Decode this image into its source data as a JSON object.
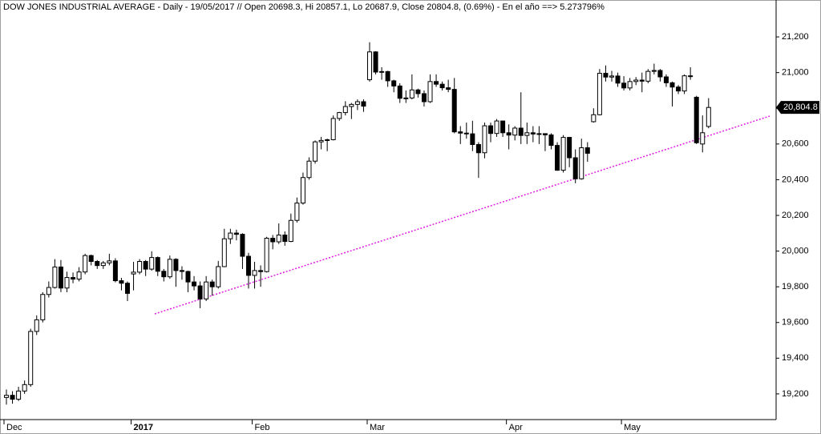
{
  "chart_data": {
    "type": "candlestick",
    "title": "DOW JONES INDUSTRIAL AVERAGE - Daily - 19/05/2017 // Open 20698.3, Hi 20857.1, Lo 20687.9, Close 20804.8, (0.69%) - En el año ==> 5.273796%",
    "categories": [
      "Dec",
      null,
      null,
      null,
      null,
      null,
      null,
      null,
      null,
      null,
      null,
      null,
      null,
      null,
      null,
      null,
      null,
      null,
      null,
      null,
      null,
      "2017",
      null,
      null,
      null,
      null,
      null,
      null,
      null,
      null,
      null,
      null,
      null,
      null,
      null,
      null,
      null,
      null,
      null,
      null,
      null,
      "Feb",
      null,
      null,
      null,
      null,
      null,
      null,
      null,
      null,
      null,
      null,
      null,
      null,
      null,
      null,
      null,
      null,
      null,
      null,
      "Mar",
      null,
      null,
      null,
      null,
      null,
      null,
      null,
      null,
      null,
      null,
      null,
      null,
      null,
      null,
      null,
      null,
      null,
      null,
      null,
      null,
      null,
      null,
      "Apr",
      null,
      null,
      null,
      null,
      null,
      null,
      null,
      null,
      null,
      null,
      null,
      null,
      null,
      null,
      null,
      null,
      null,
      null,
      "May",
      null,
      null,
      null,
      null,
      null,
      null,
      null,
      null,
      null,
      null,
      null,
      null,
      null,
      null
    ],
    "open": [
      19180,
      19192,
      19170,
      19216,
      19252,
      19550,
      19615,
      19757,
      19796,
      19911,
      19793,
      19852,
      19843,
      19883,
      19975,
      19942,
      19919,
      19934,
      19945,
      19834,
      19820,
      19872,
      19882,
      19942,
      19899,
      19964,
      19887,
      19856,
      19954,
      19891,
      19886,
      19827,
      19805,
      19732,
      19827,
      19800,
      19913,
      20069,
      20101,
      20094,
      19971,
      19864,
      19891,
      19885,
      20072,
      20052,
      20090,
      20054,
      20172,
      20269,
      20412,
      20504,
      20612,
      20620,
      20624,
      20743,
      20776,
      20810,
      20822,
      20837,
      20960,
      21116,
      21003,
      21006,
      20954,
      20925,
      20856,
      20858,
      20903,
      20882,
      20837,
      20950,
      20935,
      20915,
      20906,
      20668,
      20661,
      20657,
      20597,
      20551,
      20702,
      20659,
      20729,
      20663,
      20650,
      20689,
      20648,
      20663,
      20656,
      20658,
      20651,
      20592,
      20453,
      20637,
      20523,
      20405,
      20579,
      20725,
      20764,
      20996,
      20975,
      20981,
      20941,
      20914,
      20950,
      20958,
      20952,
      21007,
      21012,
      20976,
      20943,
      20919,
      20897,
      20982,
      20862,
      20600,
      20698.3
    ],
    "high": [
      19225,
      19215,
      19240,
      19275,
      19565,
      19640,
      19770,
      19830,
      19955,
      19950,
      19885,
      19880,
      19910,
      19985,
      19980,
      19950,
      19945,
      19985,
      19960,
      19850,
      19830,
      19940,
      19955,
      19950,
      19999,
      19970,
      19900,
      19975,
      19960,
      19915,
      19890,
      19860,
      19830,
      19860,
      19840,
      19945,
      20125,
      20125,
      20120,
      20100,
      19990,
      19940,
      19920,
      20080,
      20090,
      20155,
      20110,
      20210,
      20300,
      20440,
      20525,
      20620,
      20640,
      20630,
      20760,
      20780,
      20840,
      20830,
      20850,
      20850,
      21170,
      21120,
      21030,
      21010,
      20960,
      20940,
      20900,
      20990,
      20910,
      20900,
      20990,
      20990,
      20950,
      20960,
      20970,
      20700,
      20720,
      20730,
      20610,
      20720,
      20720,
      20740,
      20730,
      20710,
      20700,
      20890,
      20720,
      20700,
      20700,
      20660,
      20660,
      20610,
      20650,
      20640,
      20570,
      20630,
      20610,
      20800,
      21020,
      21040,
      21010,
      21000,
      20980,
      20970,
      20975,
      21000,
      21020,
      21050,
      21020,
      20990,
      20950,
      20930,
      20990,
      21030,
      20870,
      20760,
      20857.1
    ],
    "low": [
      19140,
      19145,
      19160,
      19200,
      19240,
      19530,
      19600,
      19740,
      19790,
      19770,
      19770,
      19820,
      19830,
      19870,
      19920,
      19900,
      19900,
      19920,
      19825,
      19780,
      19720,
      19780,
      19870,
      19860,
      19890,
      19860,
      19830,
      19845,
      19800,
      19840,
      19770,
      19780,
      19680,
      19720,
      19750,
      19790,
      19910,
      20040,
      20060,
      19900,
      19790,
      19790,
      19800,
      19880,
      20010,
      20040,
      20030,
      20050,
      20160,
      20260,
      20400,
      20490,
      20570,
      20560,
      20620,
      20730,
      20760,
      20740,
      20790,
      20780,
      20950,
      20990,
      20960,
      20920,
      20890,
      20830,
      20830,
      20850,
      20860,
      20810,
      20830,
      20920,
      20900,
      20890,
      20660,
      20600,
      20630,
      20560,
      20410,
      20520,
      20610,
      20640,
      20640,
      20570,
      20620,
      20600,
      20600,
      20610,
      20600,
      20560,
      20570,
      20450,
      20440,
      20470,
      20380,
      20400,
      20500,
      20720,
      20760,
      20950,
      20950,
      20920,
      20900,
      20900,
      20930,
      20890,
      20940,
      20990,
      20950,
      20920,
      20810,
      20880,
      20880,
      20960,
      20600,
      20553,
      20687.9
    ],
    "close": [
      19192,
      19170,
      19216,
      19252,
      19550,
      19615,
      19757,
      19796,
      19911,
      19793,
      19852,
      19843,
      19883,
      19975,
      19942,
      19919,
      19934,
      19945,
      19834,
      19820,
      19763,
      19882,
      19942,
      19899,
      19964,
      19887,
      19856,
      19954,
      19891,
      19886,
      19827,
      19805,
      19732,
      19827,
      19800,
      19913,
      20069,
      20101,
      20094,
      19971,
      19864,
      19891,
      19885,
      20072,
      20052,
      20090,
      20054,
      20172,
      20269,
      20412,
      20504,
      20612,
      20620,
      20624,
      20743,
      20776,
      20810,
      20822,
      20837,
      20812,
      21116,
      21003,
      21006,
      20954,
      20925,
      20856,
      20858,
      20903,
      20882,
      20837,
      20950,
      20935,
      20915,
      20906,
      20668,
      20661,
      20657,
      20597,
      20551,
      20702,
      20659,
      20729,
      20663,
      20650,
      20689,
      20648,
      20663,
      20656,
      20658,
      20651,
      20592,
      20453,
      20637,
      20523,
      20405,
      20579,
      20548,
      20764,
      20996,
      20975,
      20981,
      20941,
      20914,
      20950,
      20958,
      20952,
      21007,
      21012,
      20976,
      20943,
      20919,
      20897,
      20982,
      20980,
      20607,
      20663,
      20804.8
    ],
    "up_color": "#ffffff",
    "down_color": "#000000",
    "ylim": [
      19056,
      21326
    ],
    "yticks": [
      {
        "value": 19200,
        "label": "19,200"
      },
      {
        "value": 19400,
        "label": "19,400"
      },
      {
        "value": 19600,
        "label": "19,600"
      },
      {
        "value": 19800,
        "label": "19,800"
      },
      {
        "value": 20000,
        "label": "20,000"
      },
      {
        "value": 20200,
        "label": "20,200"
      },
      {
        "value": 20400,
        "label": "20,400"
      },
      {
        "value": 20600,
        "label": "20,600"
      },
      {
        "value": 20800,
        "label": "20,800"
      },
      {
        "value": 21000,
        "label": "21,000"
      },
      {
        "value": 21200,
        "label": "21,200"
      }
    ],
    "last_label": {
      "value": 20804.8,
      "label": "20,804.8"
    }
  }
}
